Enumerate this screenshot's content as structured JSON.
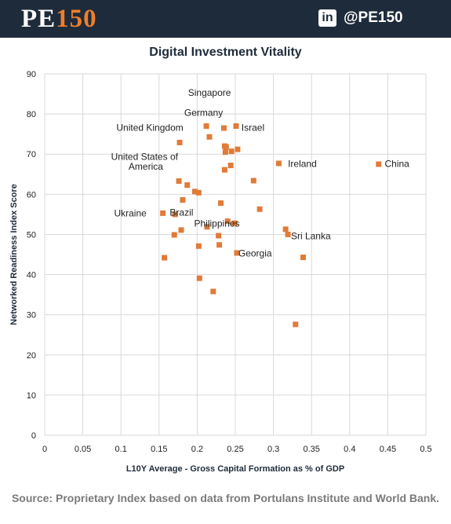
{
  "header": {
    "brand_pe": "PE",
    "brand_num": "150",
    "linkedin_icon_text": "in",
    "handle": "@PE150",
    "colors": {
      "bar": "#1e2b3a",
      "brand_accent": "#ee7f2c"
    }
  },
  "source_text": "Source: Proprietary Index based on data from Portulans Institute and World Bank.",
  "chart_data": {
    "type": "scatter",
    "title": "Digital Investment Vitality",
    "xlabel": "L10Y Average - Gross Capital Formation as % of GDP",
    "ylabel": "Networked Readiness Index Score",
    "xlim": [
      0,
      0.5
    ],
    "ylim": [
      0,
      90
    ],
    "x_ticks": [
      0,
      0.05,
      0.1,
      0.15,
      0.2,
      0.25,
      0.3,
      0.35,
      0.4,
      0.45,
      0.5
    ],
    "x_tick_labels": [
      "0",
      "0.05",
      "0.1",
      "0.15",
      "0.2",
      "0.25",
      "0.3",
      "0.35",
      "0.4",
      "0.45",
      "0.5"
    ],
    "y_ticks": [
      0,
      10,
      20,
      30,
      40,
      50,
      60,
      70,
      80,
      90
    ],
    "y_tick_labels": [
      "0",
      "10",
      "20",
      "30",
      "40",
      "50",
      "60",
      "70",
      "80",
      "90"
    ],
    "grid": true,
    "marker_color": "#e07b39",
    "points": [
      {
        "x": 0.212,
        "y": 77.0
      },
      {
        "x": 0.235,
        "y": 76.5
      },
      {
        "x": 0.251,
        "y": 77.0
      },
      {
        "x": 0.216,
        "y": 74.3
      },
      {
        "x": 0.177,
        "y": 72.9
      },
      {
        "x": 0.236,
        "y": 72.0
      },
      {
        "x": 0.238,
        "y": 71.8
      },
      {
        "x": 0.253,
        "y": 71.2
      },
      {
        "x": 0.237,
        "y": 70.5
      },
      {
        "x": 0.245,
        "y": 70.7
      },
      {
        "x": 0.307,
        "y": 67.7
      },
      {
        "x": 0.438,
        "y": 67.5
      },
      {
        "x": 0.244,
        "y": 67.2
      },
      {
        "x": 0.236,
        "y": 66.1
      },
      {
        "x": 0.176,
        "y": 63.3
      },
      {
        "x": 0.274,
        "y": 63.4
      },
      {
        "x": 0.187,
        "y": 62.3
      },
      {
        "x": 0.197,
        "y": 60.7
      },
      {
        "x": 0.202,
        "y": 60.4
      },
      {
        "x": 0.181,
        "y": 58.6
      },
      {
        "x": 0.231,
        "y": 57.8
      },
      {
        "x": 0.282,
        "y": 56.3
      },
      {
        "x": 0.155,
        "y": 55.3
      },
      {
        "x": 0.171,
        "y": 55.0
      },
      {
        "x": 0.24,
        "y": 53.3
      },
      {
        "x": 0.249,
        "y": 52.8
      },
      {
        "x": 0.213,
        "y": 51.9
      },
      {
        "x": 0.179,
        "y": 51.1
      },
      {
        "x": 0.316,
        "y": 51.3
      },
      {
        "x": 0.319,
        "y": 50.0
      },
      {
        "x": 0.17,
        "y": 49.9
      },
      {
        "x": 0.228,
        "y": 49.7
      },
      {
        "x": 0.229,
        "y": 47.4
      },
      {
        "x": 0.202,
        "y": 47.1
      },
      {
        "x": 0.252,
        "y": 45.4
      },
      {
        "x": 0.339,
        "y": 44.3
      },
      {
        "x": 0.157,
        "y": 44.2
      },
      {
        "x": 0.203,
        "y": 39.1
      },
      {
        "x": 0.221,
        "y": 35.8
      },
      {
        "x": 0.329,
        "y": 27.6
      }
    ],
    "annotations": [
      {
        "text": "Singapore",
        "x": 0.188,
        "y": 84.5
      },
      {
        "text": "Germany",
        "x": 0.183,
        "y": 79.5
      },
      {
        "text": "United Kingdom",
        "x": 0.094,
        "y": 75.8
      },
      {
        "text": "Israel",
        "x": 0.258,
        "y": 75.8
      },
      {
        "text": "United States of",
        "x": 0.087,
        "y": 68.6
      },
      {
        "text": "America",
        "x": 0.11,
        "y": 66.1
      },
      {
        "text": "Ireland",
        "x": 0.319,
        "y": 66.8
      },
      {
        "text": "China",
        "x": 0.446,
        "y": 66.8
      },
      {
        "text": "Ukraine",
        "x": 0.091,
        "y": 54.5
      },
      {
        "text": "Brazil",
        "x": 0.164,
        "y": 54.7
      },
      {
        "text": "Philippines",
        "x": 0.196,
        "y": 51.9
      },
      {
        "text": "Sri Lanka",
        "x": 0.323,
        "y": 48.8
      },
      {
        "text": "Georgia",
        "x": 0.254,
        "y": 44.5
      }
    ]
  }
}
